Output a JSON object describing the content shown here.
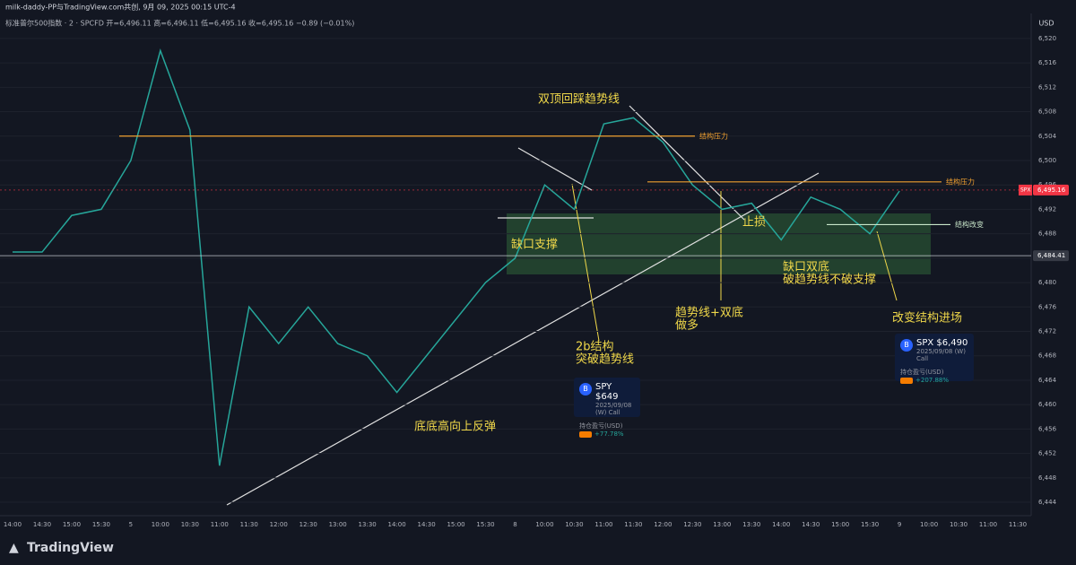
{
  "header": {
    "author_line": "milk-daddy-PP与TradingView.com共创, 9月 09, 2025 00:15 UTC-4",
    "symbol": "标准普尔500指数 · 2 · SPCFD  开=6,496.11  高=6,496.11  低=6,495.16  收=6,495.16  −0.89 (−0.01%)"
  },
  "chart_data": {
    "type": "line",
    "currency": "USD",
    "color": "#26a69a",
    "categories": [
      "14:00",
      "14:30",
      "15:00",
      "15:30",
      "5",
      "10:00",
      "10:30",
      "11:00",
      "11:30",
      "12:00",
      "12:30",
      "13:00",
      "13:30",
      "14:00",
      "14:30",
      "15:00",
      "15:30",
      "8",
      "10:00",
      "10:30",
      "11:00",
      "11:30",
      "12:00",
      "12:30",
      "13:00",
      "13:30",
      "14:00",
      "14:30",
      "15:00",
      "15:30",
      "9",
      "10:00",
      "10:30",
      "11:00",
      "11:30"
    ],
    "values": [
      6485,
      6485,
      6491,
      6492,
      6500,
      6518,
      6505,
      6450,
      6476,
      6470,
      6476,
      6470,
      6468,
      6462,
      6468,
      6474,
      6480,
      6484,
      6496,
      6492,
      6506,
      6507,
      6503,
      6496,
      6492,
      6493,
      6487,
      6494,
      6492,
      6488,
      6495,
      null,
      null,
      null,
      null
    ],
    "ylim": [
      6441.8,
      6524.1
    ],
    "yticks": [
      {
        "value": 6444,
        "label": "6,444"
      },
      {
        "value": 6448,
        "label": "6,448"
      },
      {
        "value": 6452,
        "label": "6,452"
      },
      {
        "value": 6456,
        "label": "6,456"
      },
      {
        "value": 6460,
        "label": "6,460"
      },
      {
        "value": 6464,
        "label": "6,464"
      },
      {
        "value": 6468,
        "label": "6,468"
      },
      {
        "value": 6472,
        "label": "6,472"
      },
      {
        "value": 6476,
        "label": "6,476"
      },
      {
        "value": 6480,
        "label": "6,480"
      },
      {
        "value": 6484,
        "label": "6,484"
      },
      {
        "value": 6488,
        "label": "6,488"
      },
      {
        "value": 6492,
        "label": "6,492"
      },
      {
        "value": 6496,
        "label": "6,496"
      },
      {
        "value": 6500,
        "label": "6,500"
      },
      {
        "value": 6504,
        "label": "6,504"
      },
      {
        "value": 6508,
        "label": "6,508"
      },
      {
        "value": 6512,
        "label": "6,512"
      },
      {
        "value": 6516,
        "label": "6,516"
      },
      {
        "value": 6520,
        "label": "6,520"
      }
    ],
    "grid": true,
    "levels": [
      {
        "name": "结构压力",
        "value": 6504,
        "color": "#f0a030"
      },
      {
        "name": "结构压力",
        "value": 6496.5,
        "color": "#f0a030"
      },
      {
        "name": "结构改变",
        "value": 6489.5,
        "color": "#c8e6c9"
      }
    ],
    "price_tags": [
      {
        "name": "SPX",
        "value": 6495.16,
        "label": "6,495.16",
        "color": "#f23645"
      },
      {
        "value": 6484.41,
        "label": "6,484.41",
        "color": "#363a45"
      }
    ],
    "annotations": [
      {
        "lines": [
          "双顶回踩趋势线"
        ]
      },
      {
        "lines": [
          "缺口支撑"
        ]
      },
      {
        "lines": [
          "止损"
        ]
      },
      {
        "lines": [
          "缺口双底",
          "破趋势线不破支撑"
        ]
      },
      {
        "lines": [
          "趋势线+双底",
          "做多"
        ]
      },
      {
        "lines": [
          "改变结构进场"
        ]
      },
      {
        "lines": [
          "2b结构",
          "突破趋势线"
        ]
      },
      {
        "lines": [
          "底底高向上反弹"
        ]
      }
    ]
  },
  "cards": [
    {
      "symbol": "SPY $649",
      "expiry": "2025/09/08 (W) Call",
      "pnl_label": "持仓盈亏(USD)",
      "pnl": "+77.78%"
    },
    {
      "symbol": "SPX $6,490",
      "expiry": "2025/09/08 (W) Call",
      "pnl_label": "持仓盈亏(USD)",
      "pnl": "+207.88%"
    }
  ],
  "footer": {
    "brand": "TradingView"
  }
}
